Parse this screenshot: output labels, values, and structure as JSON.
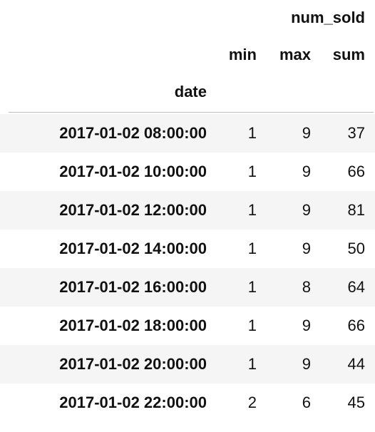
{
  "table": {
    "column_group": "num_sold",
    "columns": [
      "min",
      "max",
      "sum"
    ],
    "index_name": "date",
    "rows": [
      {
        "date": "2017-01-02 08:00:00",
        "min": "1",
        "max": "9",
        "sum": "37"
      },
      {
        "date": "2017-01-02 10:00:00",
        "min": "1",
        "max": "9",
        "sum": "66"
      },
      {
        "date": "2017-01-02 12:00:00",
        "min": "1",
        "max": "9",
        "sum": "81"
      },
      {
        "date": "2017-01-02 14:00:00",
        "min": "1",
        "max": "9",
        "sum": "50"
      },
      {
        "date": "2017-01-02 16:00:00",
        "min": "1",
        "max": "8",
        "sum": "64"
      },
      {
        "date": "2017-01-02 18:00:00",
        "min": "1",
        "max": "9",
        "sum": "66"
      },
      {
        "date": "2017-01-02 20:00:00",
        "min": "1",
        "max": "9",
        "sum": "44"
      },
      {
        "date": "2017-01-02 22:00:00",
        "min": "2",
        "max": "6",
        "sum": "45"
      }
    ]
  },
  "colors": {
    "stripe": "#f5f5f5",
    "rule": "#bdbdbd",
    "text": "#111111"
  }
}
